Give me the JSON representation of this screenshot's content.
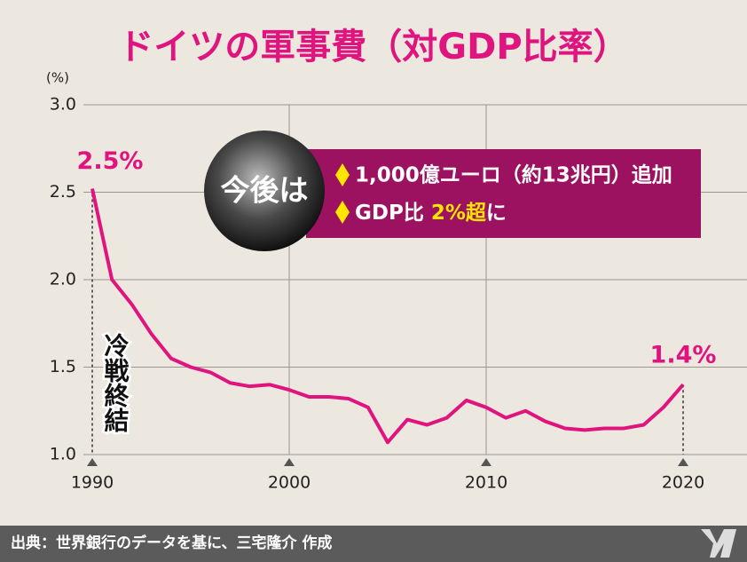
{
  "chart_data": {
    "type": "line",
    "title": "ドイツの軍事費（対GDP比率）",
    "y_unit": "(%)",
    "x": [
      1990,
      1991,
      1992,
      1993,
      1994,
      1995,
      1996,
      1997,
      1998,
      1999,
      2000,
      2001,
      2002,
      2003,
      2004,
      2005,
      2006,
      2007,
      2008,
      2009,
      2010,
      2011,
      2012,
      2013,
      2014,
      2015,
      2016,
      2017,
      2018,
      2019,
      2020
    ],
    "series": [
      {
        "name": "ドイツの軍事費",
        "color": "#e0147f",
        "values": [
          2.52,
          2.0,
          1.86,
          1.69,
          1.55,
          1.5,
          1.47,
          1.41,
          1.39,
          1.4,
          1.37,
          1.33,
          1.33,
          1.32,
          1.27,
          1.07,
          1.2,
          1.17,
          1.21,
          1.31,
          1.27,
          1.21,
          1.25,
          1.19,
          1.15,
          1.14,
          1.15,
          1.15,
          1.17,
          1.27,
          1.4
        ]
      }
    ],
    "xlim": [
      1990,
      2020
    ],
    "xticks": [
      1990,
      2000,
      2010,
      2020
    ],
    "ylim": [
      1.0,
      3.0
    ],
    "yticks": [
      {
        "value": 1.0,
        "label": "1.0"
      },
      1.5,
      {
        "value": 2.0,
        "label": "2.0"
      },
      2.5,
      {
        "value": 3.0,
        "label": "3.0"
      }
    ],
    "grid": true,
    "annotations": {
      "start": "2.5%",
      "end": "1.4%",
      "event": "冷戦終結"
    },
    "callout": {
      "badge": "今後は",
      "line1": "1,000億ユーロ（約13兆円）追加",
      "line2_a": "GDP比 ",
      "line2_b": "2%超",
      "line2_c": "に"
    },
    "source": "出典：世界銀行のデータを基に、三宅隆介 作成"
  }
}
